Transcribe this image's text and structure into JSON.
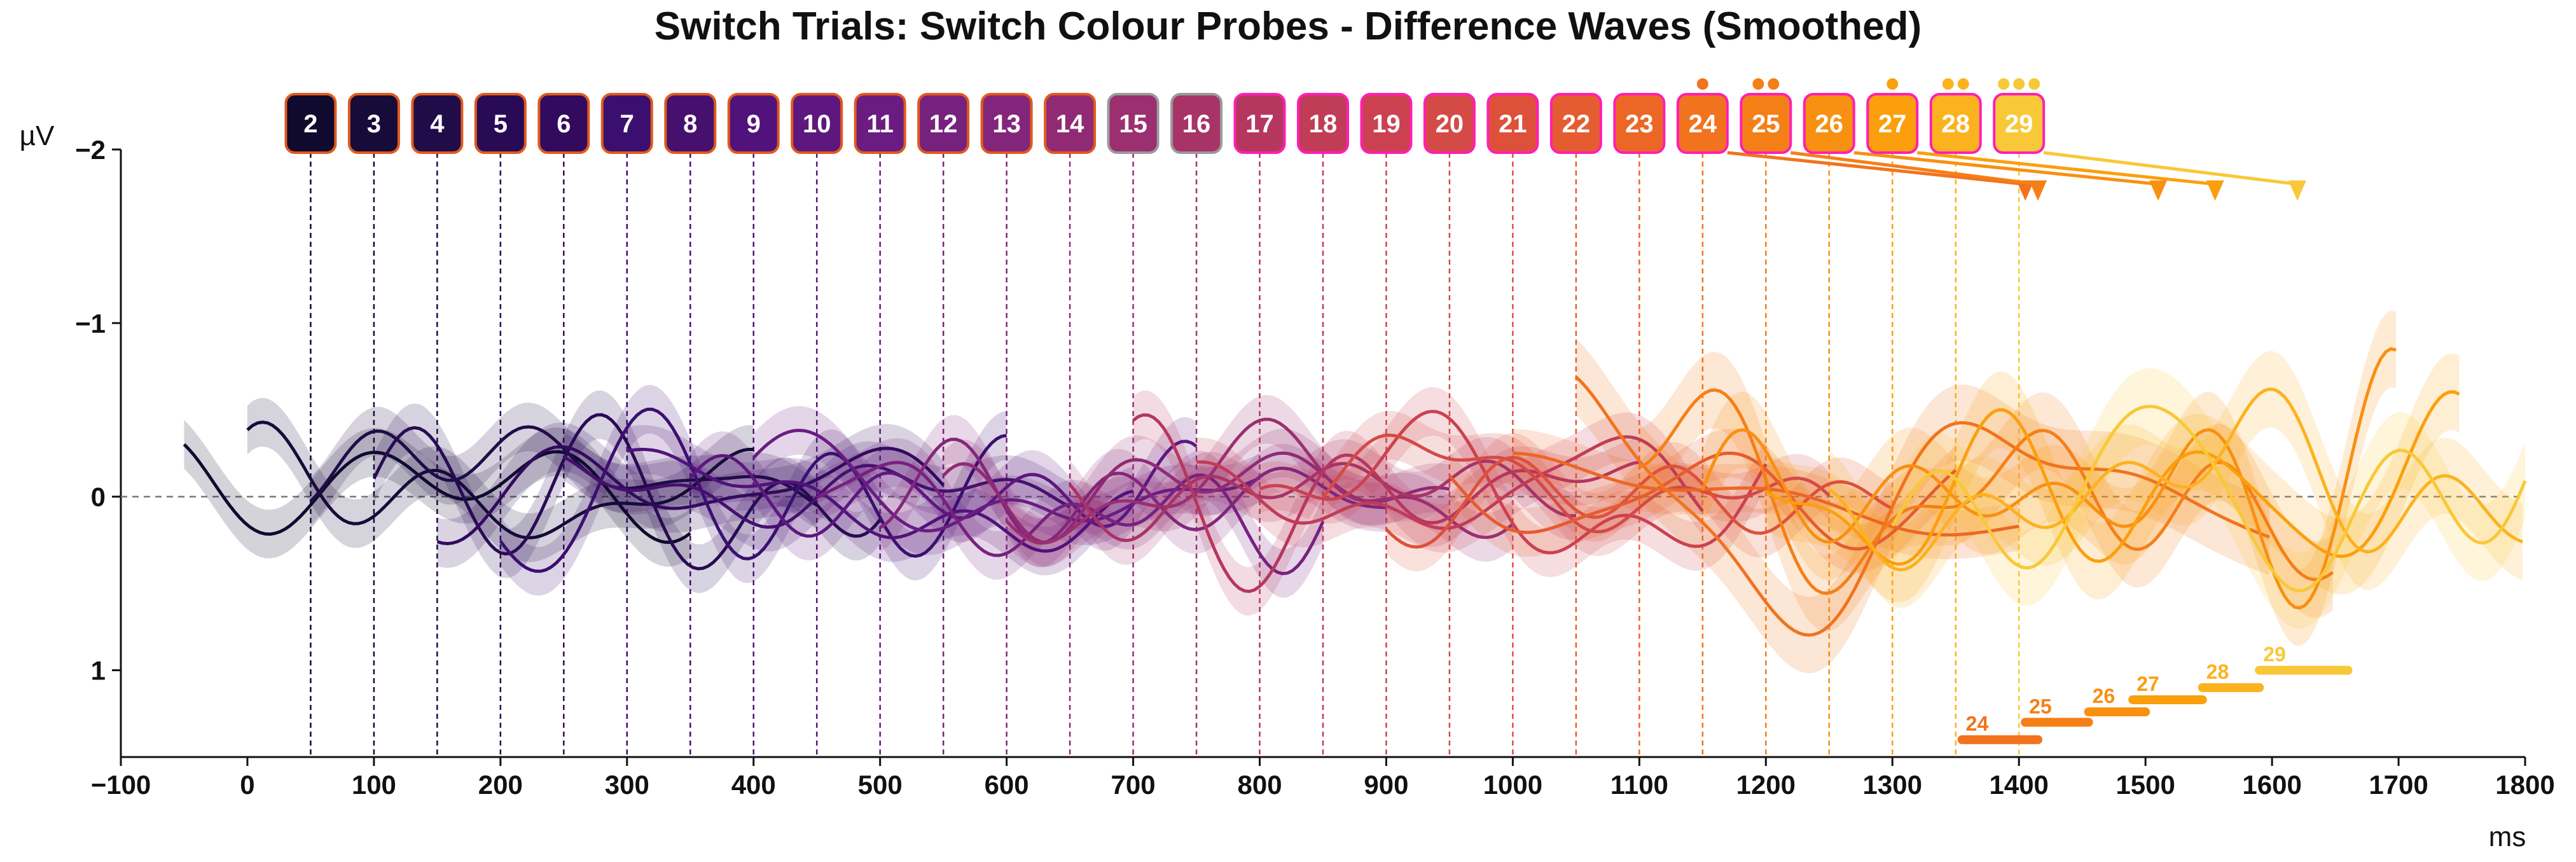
{
  "chart_data": {
    "type": "line",
    "title": "Switch Trials: Switch Colour Probes - Difference Waves (Smoothed)",
    "xlabel": "ms",
    "ylabel": "µV",
    "xlim": [
      -100,
      1800
    ],
    "ylim": [
      -2,
      1.5
    ],
    "y_inverted": true,
    "xticks": [
      -100,
      0,
      100,
      200,
      300,
      400,
      500,
      600,
      700,
      800,
      900,
      1000,
      1100,
      1200,
      1300,
      1400,
      1500,
      1600,
      1700,
      1800
    ],
    "yticks": [
      -2,
      -1,
      0,
      1
    ],
    "ytick_labels": [
      "−2",
      "−1",
      "0",
      "1"
    ],
    "baseline": 0,
    "probes": [
      {
        "label": "2",
        "onset_ms": 50,
        "color": "#0f0a2e"
      },
      {
        "label": "3",
        "onset_ms": 100,
        "color": "#160b39"
      },
      {
        "label": "4",
        "onset_ms": 150,
        "color": "#1f0c48"
      },
      {
        "label": "5",
        "onset_ms": 200,
        "color": "#280b54"
      },
      {
        "label": "6",
        "onset_ms": 250,
        "color": "#320a5e"
      },
      {
        "label": "7",
        "onset_ms": 300,
        "color": "#3b0f70"
      },
      {
        "label": "8",
        "onset_ms": 350,
        "color": "#45106e"
      },
      {
        "label": "9",
        "onset_ms": 400,
        "color": "#51127c"
      },
      {
        "label": "10",
        "onset_ms": 450,
        "color": "#5d177f"
      },
      {
        "label": "11",
        "onset_ms": 500,
        "color": "#6a1c81"
      },
      {
        "label": "12",
        "onset_ms": 550,
        "color": "#77217f"
      },
      {
        "label": "13",
        "onset_ms": 600,
        "color": "#83267b"
      },
      {
        "label": "14",
        "onset_ms": 650,
        "color": "#902a74"
      },
      {
        "label": "15",
        "onset_ms": 700,
        "color": "#9b2f6f"
      },
      {
        "label": "16",
        "onset_ms": 750,
        "color": "#a83366"
      },
      {
        "label": "17",
        "onset_ms": 800,
        "color": "#b5375f"
      },
      {
        "label": "18",
        "onset_ms": 850,
        "color": "#c03c57"
      },
      {
        "label": "19",
        "onset_ms": 900,
        "color": "#cb4150"
      },
      {
        "label": "20",
        "onset_ms": 950,
        "color": "#d44a46"
      },
      {
        "label": "21",
        "onset_ms": 1000,
        "color": "#dd513a"
      },
      {
        "label": "22",
        "onset_ms": 1050,
        "color": "#e55c30"
      },
      {
        "label": "23",
        "onset_ms": 1100,
        "color": "#ec6725"
      },
      {
        "label": "24",
        "onset_ms": 1150,
        "color": "#f1731d"
      },
      {
        "label": "25",
        "onset_ms": 1200,
        "color": "#f57f17"
      },
      {
        "label": "26",
        "onset_ms": 1250,
        "color": "#f89012"
      },
      {
        "label": "27",
        "onset_ms": 1300,
        "color": "#fb9f0c"
      },
      {
        "label": "28",
        "onset_ms": 1350,
        "color": "#fcb21f"
      },
      {
        "label": "29",
        "onset_ms": 1400,
        "color": "#f8c838"
      }
    ],
    "highlighted_probes": [
      "17",
      "18",
      "19",
      "20",
      "21",
      "22",
      "23",
      "24",
      "25",
      "26",
      "27",
      "28",
      "29"
    ],
    "significance_dots": [
      {
        "probe": "24",
        "count": 1
      },
      {
        "probe": "25",
        "count": 2
      },
      {
        "probe": "27",
        "count": 1
      },
      {
        "probe": "28",
        "count": 2
      },
      {
        "probe": "29",
        "count": 3
      }
    ],
    "peak_markers": [
      {
        "probe": "24",
        "peak_ms": 1405
      },
      {
        "probe": "25",
        "peak_ms": 1415
      },
      {
        "probe": "26",
        "peak_ms": 1510
      },
      {
        "probe": "27",
        "peak_ms": 1555
      },
      {
        "probe": "29",
        "peak_ms": 1620
      }
    ],
    "significant_windows": [
      {
        "label": "24",
        "start_ms": 1355,
        "end_ms": 1415,
        "y_uv": 1.4
      },
      {
        "label": "25",
        "start_ms": 1405,
        "end_ms": 1455,
        "y_uv": 1.3
      },
      {
        "label": "26",
        "start_ms": 1455,
        "end_ms": 1500,
        "y_uv": 1.24
      },
      {
        "label": "27",
        "start_ms": 1490,
        "end_ms": 1545,
        "y_uv": 1.17
      },
      {
        "label": "28",
        "start_ms": 1545,
        "end_ms": 1590,
        "y_uv": 1.1
      },
      {
        "label": "29",
        "start_ms": 1590,
        "end_ms": 1660,
        "y_uv": 1.0
      }
    ]
  }
}
